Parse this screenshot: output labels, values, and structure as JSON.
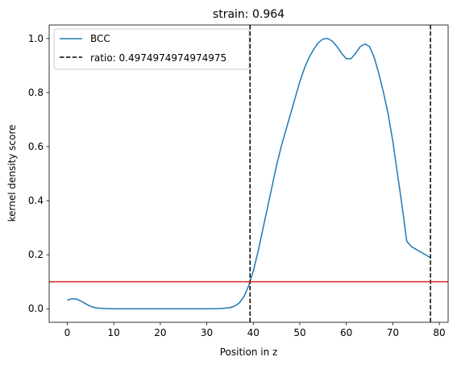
{
  "chart_data": {
    "type": "line",
    "title": "strain: 0.964",
    "xlabel": "Position in z",
    "ylabel": "kernel density score",
    "xlim": [
      -3.9,
      81.9
    ],
    "ylim": [
      -0.05,
      1.05
    ],
    "xticks": [
      0,
      10,
      20,
      30,
      40,
      50,
      60,
      70,
      80
    ],
    "yticks": [
      0.0,
      0.2,
      0.4,
      0.6,
      0.8,
      1.0
    ],
    "legend_position": "top-left",
    "grid": false,
    "series": [
      {
        "name": "BCC",
        "style": "solid",
        "color": "#1f77b4",
        "x": [
          0,
          1,
          2,
          3,
          4,
          5,
          6,
          7,
          8,
          10,
          15,
          20,
          25,
          30,
          33,
          35,
          36,
          37,
          38,
          39,
          40,
          41,
          42,
          43,
          44,
          45,
          46,
          47,
          48,
          49,
          50,
          51,
          52,
          53,
          54,
          55,
          56,
          57,
          58,
          59,
          60,
          61,
          62,
          63,
          64,
          65,
          66,
          67,
          68,
          69,
          70,
          71,
          72,
          73,
          74,
          75,
          76,
          77,
          78
        ],
        "y": [
          0.032,
          0.037,
          0.036,
          0.028,
          0.018,
          0.009,
          0.004,
          0.002,
          0.001,
          0.0,
          0.0,
          0.0,
          0.0,
          0.0,
          0.001,
          0.004,
          0.01,
          0.022,
          0.045,
          0.085,
          0.14,
          0.21,
          0.29,
          0.37,
          0.45,
          0.53,
          0.6,
          0.66,
          0.72,
          0.78,
          0.84,
          0.89,
          0.93,
          0.96,
          0.985,
          0.998,
          1.0,
          0.99,
          0.97,
          0.945,
          0.925,
          0.925,
          0.945,
          0.97,
          0.98,
          0.97,
          0.93,
          0.87,
          0.8,
          0.72,
          0.62,
          0.5,
          0.38,
          0.25,
          0.23,
          0.22,
          0.21,
          0.2,
          0.19
        ]
      },
      {
        "name": "ratio: 0.4974974974974975",
        "style": "dashed",
        "color": "#000000",
        "vlines": [
          39.3,
          78.1
        ]
      }
    ],
    "hline": {
      "y": 0.1,
      "color": "#d62728"
    }
  }
}
